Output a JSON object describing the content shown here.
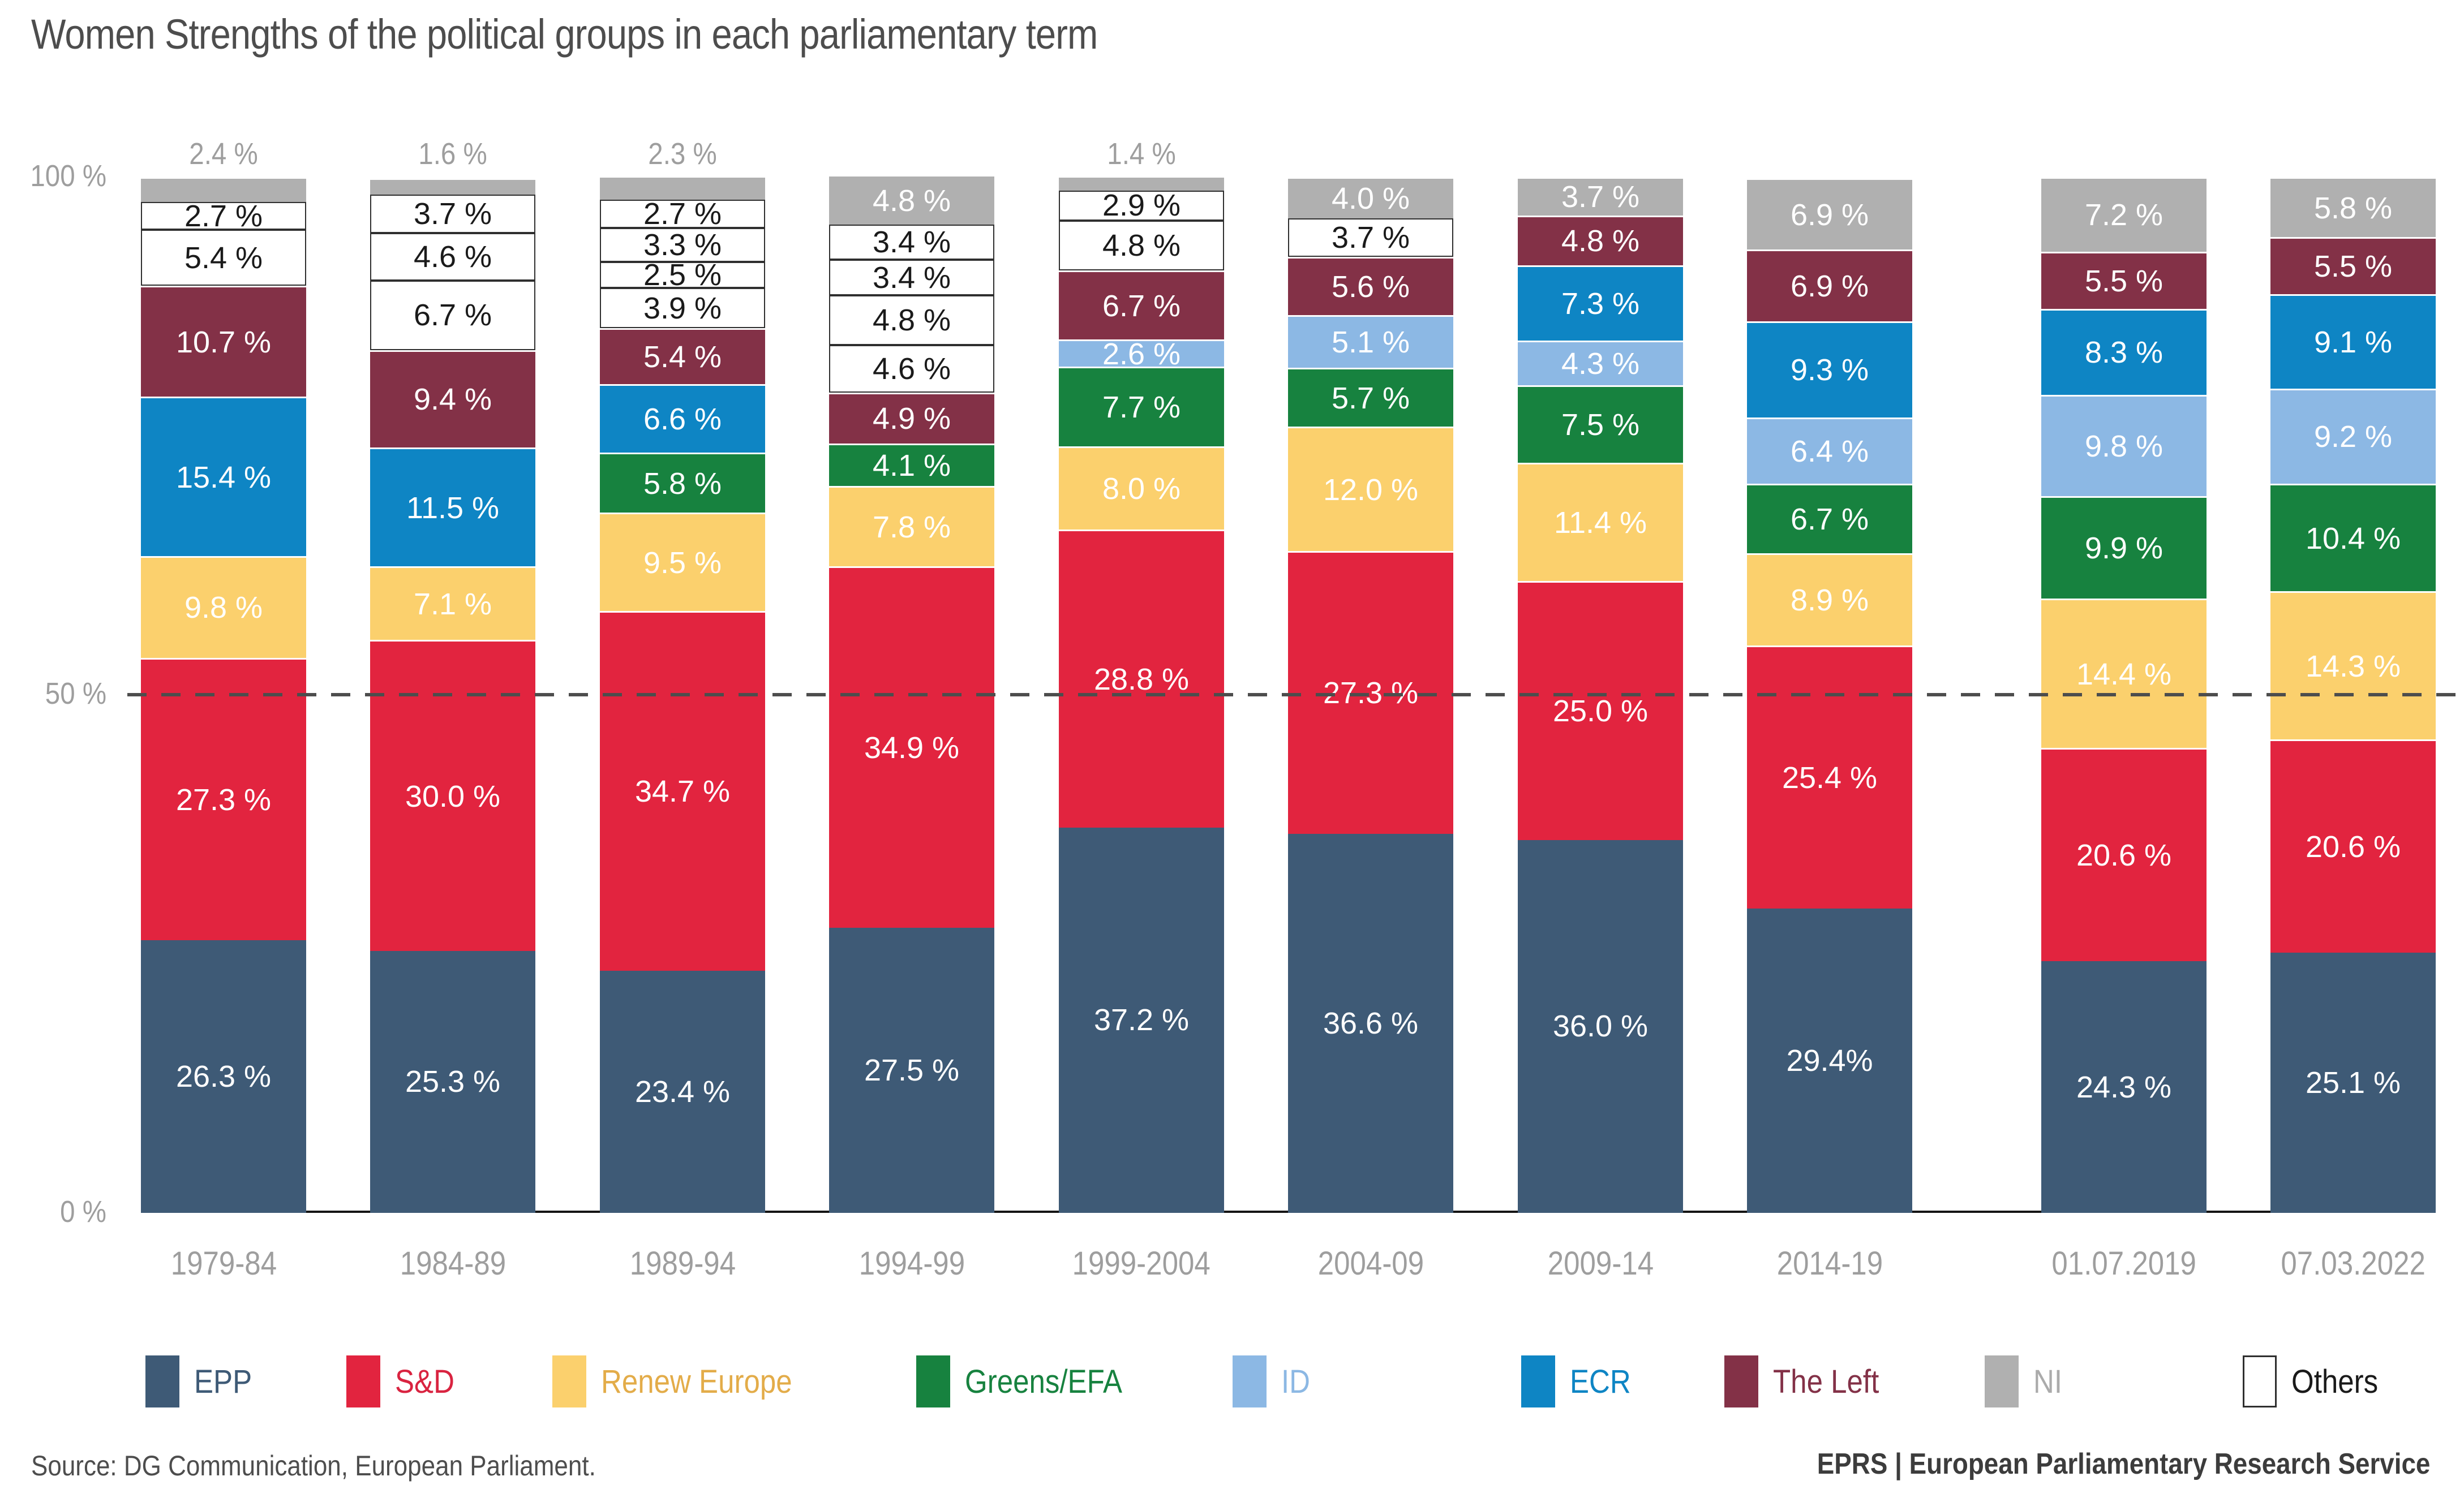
{
  "title": "Women Strengths of the political groups in each parliamentary term",
  "footer": {
    "source": "Source: DG Communication, European Parliament.",
    "brand": "EPRS | European Parliamentary Research Service"
  },
  "legend": {
    "items": [
      {
        "group": "epp",
        "label": "EPP"
      },
      {
        "group": "sd",
        "label": "S&D"
      },
      {
        "group": "renew",
        "label": "Renew Europe"
      },
      {
        "group": "greens",
        "label": "Greens/EFA"
      },
      {
        "group": "id",
        "label": "ID"
      },
      {
        "group": "ecr",
        "label": "ECR"
      },
      {
        "group": "left",
        "label": "The Left"
      },
      {
        "group": "ni",
        "label": "NI"
      },
      {
        "group": "others",
        "label": "Others"
      }
    ]
  },
  "chart_data": {
    "type": "bar",
    "subtype": "stacked-percentage",
    "unit": "%",
    "ylim": [
      0,
      100
    ],
    "yticks": [
      "100 %",
      "50 %",
      "0 %"
    ],
    "gridline_50pct": true,
    "legend_position": "bottom",
    "categories": [
      "1979-84",
      "1984-89",
      "1989-94",
      "1994-99",
      "1999-2004",
      "2004-09",
      "2009-14",
      "2014-19",
      "01.07.2019",
      "07.03.2022"
    ],
    "groups": {
      "epp": {
        "label": "EPP",
        "color": "#3e5a76",
        "legend_text_color": "#3e5a76"
      },
      "sd": {
        "label": "S&D",
        "color": "#e2243f",
        "legend_text_color": "#d92340"
      },
      "renew": {
        "label": "Renew Europe",
        "color": "#fbd06d",
        "legend_text_color": "#e3ac49"
      },
      "greens": {
        "label": "Greens/EFA",
        "color": "#17823f",
        "legend_text_color": "#17823f"
      },
      "id": {
        "label": "ID",
        "color": "#8cb8e4",
        "legend_text_color": "#8cb8e4"
      },
      "ecr": {
        "label": "ECR",
        "color": "#0e85c4",
        "legend_text_color": "#0e85c4"
      },
      "left": {
        "label": "The Left",
        "color": "#833147",
        "legend_text_color": "#833147"
      },
      "ni": {
        "label": "NI",
        "color": "#b0b0b0",
        "legend_text_color": "#ababab"
      },
      "others": {
        "label": "Others",
        "color": "#ffffff",
        "legend_text_color": "#1a1a1a",
        "border": "#2f2f2f"
      }
    },
    "bars": [
      {
        "category": "1979-84",
        "ni_outside": true,
        "segments": [
          {
            "g": "epp",
            "v": 26.3,
            "label": "26.3 %"
          },
          {
            "g": "sd",
            "v": 27.3,
            "label": "27.3 %"
          },
          {
            "g": "renew",
            "v": 9.8,
            "label": "9.8 %"
          },
          {
            "g": "ecr",
            "v": 15.4,
            "label": "15.4 %"
          },
          {
            "g": "left",
            "v": 10.7,
            "label": "10.7 %"
          },
          {
            "g": "others",
            "v": 5.4,
            "label": "5.4 %"
          },
          {
            "g": "others",
            "v": 2.7,
            "label": "2.7 %"
          },
          {
            "g": "ni",
            "v": 2.4,
            "label": "2.4 %"
          }
        ]
      },
      {
        "category": "1984-89",
        "ni_outside": true,
        "segments": [
          {
            "g": "epp",
            "v": 25.3,
            "label": "25.3 %"
          },
          {
            "g": "sd",
            "v": 30.0,
            "label": "30.0 %"
          },
          {
            "g": "renew",
            "v": 7.1,
            "label": "7.1 %"
          },
          {
            "g": "ecr",
            "v": 11.5,
            "label": "11.5 %"
          },
          {
            "g": "left",
            "v": 9.4,
            "label": "9.4 %"
          },
          {
            "g": "others",
            "v": 6.7,
            "label": "6.7 %"
          },
          {
            "g": "others",
            "v": 4.6,
            "label": "4.6 %"
          },
          {
            "g": "others",
            "v": 3.7,
            "label": "3.7 %"
          },
          {
            "g": "ni",
            "v": 1.6,
            "label": "1.6 %"
          }
        ]
      },
      {
        "category": "1989-94",
        "ni_outside": true,
        "segments": [
          {
            "g": "epp",
            "v": 23.4,
            "label": "23.4 %"
          },
          {
            "g": "sd",
            "v": 34.7,
            "label": "34.7 %"
          },
          {
            "g": "renew",
            "v": 9.5,
            "label": "9.5 %"
          },
          {
            "g": "greens",
            "v": 5.8,
            "label": "5.8 %"
          },
          {
            "g": "ecr",
            "v": 6.6,
            "label": "6.6 %"
          },
          {
            "g": "left",
            "v": 5.4,
            "label": "5.4 %"
          },
          {
            "g": "others",
            "v": 3.9,
            "label": "3.9 %"
          },
          {
            "g": "others",
            "v": 2.5,
            "label": "2.5 %"
          },
          {
            "g": "others",
            "v": 3.3,
            "label": "3.3 %"
          },
          {
            "g": "others",
            "v": 2.7,
            "label": "2.7 %"
          },
          {
            "g": "ni",
            "v": 2.3,
            "label": "2.3 %"
          }
        ]
      },
      {
        "category": "1994-99",
        "ni_outside": false,
        "segments": [
          {
            "g": "epp",
            "v": 27.5,
            "label": "27.5 %"
          },
          {
            "g": "sd",
            "v": 34.9,
            "label": "34.9 %"
          },
          {
            "g": "renew",
            "v": 7.8,
            "label": "7.8 %"
          },
          {
            "g": "greens",
            "v": 4.1,
            "label": "4.1 %"
          },
          {
            "g": "left",
            "v": 4.9,
            "label": "4.9 %"
          },
          {
            "g": "others",
            "v": 4.6,
            "label": "4.6 %"
          },
          {
            "g": "others",
            "v": 4.8,
            "label": "4.8 %"
          },
          {
            "g": "others",
            "v": 3.4,
            "label": "3.4 %"
          },
          {
            "g": "others",
            "v": 3.4,
            "label": "3.4 %"
          },
          {
            "g": "ni",
            "v": 4.8,
            "label": "4.8 %"
          }
        ]
      },
      {
        "category": "1999-2004",
        "ni_outside": true,
        "segments": [
          {
            "g": "epp",
            "v": 37.2,
            "label": "37.2 %"
          },
          {
            "g": "sd",
            "v": 28.8,
            "label": "28.8 %"
          },
          {
            "g": "renew",
            "v": 8.0,
            "label": "8.0 %"
          },
          {
            "g": "greens",
            "v": 7.7,
            "label": "7.7 %"
          },
          {
            "g": "id",
            "v": 2.6,
            "label": "2.6 %"
          },
          {
            "g": "left",
            "v": 6.7,
            "label": "6.7 %"
          },
          {
            "g": "others",
            "v": 4.8,
            "label": "4.8 %"
          },
          {
            "g": "others",
            "v": 2.9,
            "label": "2.9 %"
          },
          {
            "g": "ni",
            "v": 1.4,
            "label": "1.4 %"
          }
        ]
      },
      {
        "category": "2004-09",
        "ni_outside": false,
        "segments": [
          {
            "g": "epp",
            "v": 36.6,
            "label": "36.6 %"
          },
          {
            "g": "sd",
            "v": 27.3,
            "label": "27.3 %"
          },
          {
            "g": "renew",
            "v": 12.0,
            "label": "12.0 %"
          },
          {
            "g": "greens",
            "v": 5.7,
            "label": "5.7 %"
          },
          {
            "g": "id",
            "v": 5.1,
            "label": "5.1 %"
          },
          {
            "g": "left",
            "v": 5.6,
            "label": "5.6 %"
          },
          {
            "g": "others",
            "v": 3.7,
            "label": "3.7 %"
          },
          {
            "g": "ni",
            "v": 4.0,
            "label": "4.0 %"
          }
        ]
      },
      {
        "category": "2009-14",
        "ni_outside": false,
        "segments": [
          {
            "g": "epp",
            "v": 36.0,
            "label": "36.0 %"
          },
          {
            "g": "sd",
            "v": 25.0,
            "label": "25.0 %"
          },
          {
            "g": "renew",
            "v": 11.4,
            "label": "11.4 %"
          },
          {
            "g": "greens",
            "v": 7.5,
            "label": "7.5 %"
          },
          {
            "g": "id",
            "v": 4.3,
            "label": "4.3 %"
          },
          {
            "g": "ecr",
            "v": 7.3,
            "label": "7.3 %"
          },
          {
            "g": "left",
            "v": 4.8,
            "label": "4.8 %"
          },
          {
            "g": "ni",
            "v": 3.7,
            "label": "3.7 %"
          }
        ]
      },
      {
        "category": "2014-19",
        "ni_outside": false,
        "segments": [
          {
            "g": "epp",
            "v": 29.4,
            "label": "29.4%"
          },
          {
            "g": "sd",
            "v": 25.4,
            "label": "25.4 %"
          },
          {
            "g": "renew",
            "v": 8.9,
            "label": "8.9 %"
          },
          {
            "g": "greens",
            "v": 6.7,
            "label": "6.7 %"
          },
          {
            "g": "id",
            "v": 6.4,
            "label": "6.4 %"
          },
          {
            "g": "ecr",
            "v": 9.3,
            "label": "9.3 %"
          },
          {
            "g": "left",
            "v": 6.9,
            "label": "6.9 %"
          },
          {
            "g": "ni",
            "v": 6.9,
            "label": "6.9 %"
          }
        ]
      },
      {
        "category": "01.07.2019",
        "ni_outside": false,
        "segments": [
          {
            "g": "epp",
            "v": 24.3,
            "label": "24.3 %"
          },
          {
            "g": "sd",
            "v": 20.6,
            "label": "20.6 %"
          },
          {
            "g": "renew",
            "v": 14.4,
            "label": "14.4 %"
          },
          {
            "g": "greens",
            "v": 9.9,
            "label": "9.9 %"
          },
          {
            "g": "id",
            "v": 9.8,
            "label": "9.8 %"
          },
          {
            "g": "ecr",
            "v": 8.3,
            "label": "8.3 %"
          },
          {
            "g": "left",
            "v": 5.5,
            "label": "5.5 %"
          },
          {
            "g": "ni",
            "v": 7.2,
            "label": "7.2 %"
          }
        ]
      },
      {
        "category": "07.03.2022",
        "ni_outside": false,
        "segments": [
          {
            "g": "epp",
            "v": 25.1,
            "label": "25.1 %"
          },
          {
            "g": "sd",
            "v": 20.6,
            "label": "20.6 %"
          },
          {
            "g": "renew",
            "v": 14.3,
            "label": "14.3 %"
          },
          {
            "g": "greens",
            "v": 10.4,
            "label": "10.4 %"
          },
          {
            "g": "id",
            "v": 9.2,
            "label": "9.2 %"
          },
          {
            "g": "ecr",
            "v": 9.1,
            "label": "9.1 %"
          },
          {
            "g": "left",
            "v": 5.5,
            "label": "5.5 %"
          },
          {
            "g": "ni",
            "v": 5.8,
            "label": "5.8 %"
          }
        ]
      }
    ]
  }
}
